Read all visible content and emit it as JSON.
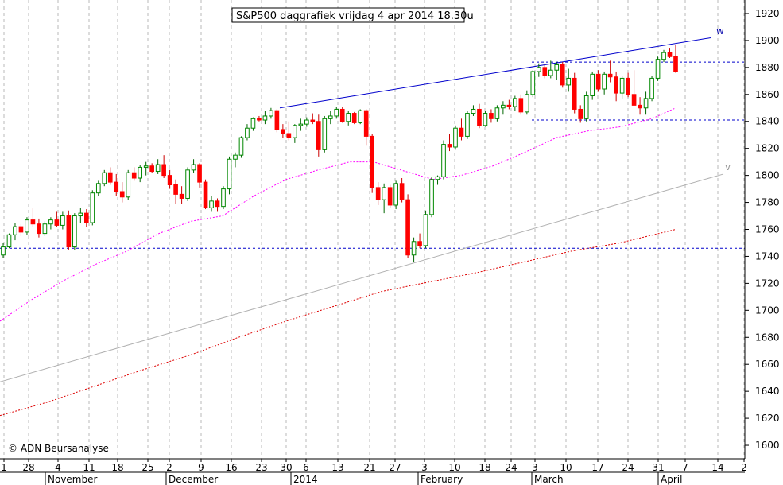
{
  "title": "S&P500 daggrafiek vrijdag 4 apr 2014 18.30u",
  "copyright": "© ADN Beursanalyse",
  "chart_data": {
    "type": "candlestick",
    "ylim": [
      1590,
      1930
    ],
    "y_ticks": [
      1600,
      1620,
      1640,
      1660,
      1680,
      1700,
      1720,
      1740,
      1760,
      1780,
      1800,
      1820,
      1840,
      1860,
      1880,
      1900,
      1920
    ],
    "x_tick_labels": [
      "1",
      "28",
      "4",
      "11",
      "18",
      "25",
      "2",
      "9",
      "16",
      "23",
      "30",
      "6",
      "13",
      "21",
      "27",
      "3",
      "10",
      "18",
      "24",
      "3",
      "10",
      "17",
      "24",
      "31",
      "7",
      "14",
      "2"
    ],
    "months": [
      "November",
      "December",
      "2014",
      "February",
      "March",
      "April"
    ],
    "up_color": "#00aa00",
    "down_color": "#ff0000",
    "line_labels": {
      "upper_trend": "w",
      "long_trend": "v"
    },
    "horizontal_levels": [
      1884,
      1841,
      1746
    ],
    "candles": [
      [
        1741,
        1750,
        1739,
        1747
      ],
      [
        1747,
        1757,
        1746,
        1756
      ],
      [
        1756,
        1765,
        1752,
        1762
      ],
      [
        1762,
        1764,
        1755,
        1758
      ],
      [
        1758,
        1769,
        1756,
        1767
      ],
      [
        1767,
        1776,
        1762,
        1764
      ],
      [
        1764,
        1768,
        1754,
        1757
      ],
      [
        1757,
        1766,
        1755,
        1764
      ],
      [
        1764,
        1769,
        1760,
        1767
      ],
      [
        1767,
        1773,
        1762,
        1763
      ],
      [
        1763,
        1773,
        1760,
        1770
      ],
      [
        1770,
        1774,
        1745,
        1747
      ],
      [
        1747,
        1772,
        1745,
        1770
      ],
      [
        1770,
        1776,
        1765,
        1772
      ],
      [
        1772,
        1775,
        1762,
        1765
      ],
      [
        1765,
        1789,
        1763,
        1787
      ],
      [
        1787,
        1796,
        1785,
        1794
      ],
      [
        1794,
        1804,
        1792,
        1802
      ],
      [
        1802,
        1806,
        1793,
        1795
      ],
      [
        1795,
        1801,
        1785,
        1788
      ],
      [
        1788,
        1795,
        1780,
        1784
      ],
      [
        1784,
        1804,
        1782,
        1802
      ],
      [
        1802,
        1806,
        1796,
        1798
      ],
      [
        1798,
        1808,
        1795,
        1806
      ],
      [
        1806,
        1810,
        1800,
        1807
      ],
      [
        1807,
        1809,
        1802,
        1803
      ],
      [
        1803,
        1812,
        1801,
        1808
      ],
      [
        1808,
        1815,
        1798,
        1800
      ],
      [
        1800,
        1804,
        1790,
        1793
      ],
      [
        1793,
        1797,
        1779,
        1786
      ],
      [
        1786,
        1792,
        1779,
        1783
      ],
      [
        1783,
        1806,
        1781,
        1804
      ],
      [
        1804,
        1812,
        1802,
        1808
      ],
      [
        1808,
        1809,
        1791,
        1795
      ],
      [
        1795,
        1797,
        1775,
        1776
      ],
      [
        1776,
        1785,
        1773,
        1781
      ],
      [
        1781,
        1783,
        1773,
        1777
      ],
      [
        1777,
        1792,
        1775,
        1790
      ],
      [
        1790,
        1814,
        1786,
        1812
      ],
      [
        1812,
        1817,
        1806,
        1815
      ],
      [
        1815,
        1829,
        1813,
        1828
      ],
      [
        1828,
        1838,
        1826,
        1835
      ],
      [
        1835,
        1843,
        1833,
        1842
      ],
      [
        1842,
        1844,
        1840,
        1841
      ],
      [
        1841,
        1848,
        1838,
        1844
      ],
      [
        1844,
        1850,
        1842,
        1848
      ],
      [
        1848,
        1849,
        1832,
        1834
      ],
      [
        1834,
        1838,
        1828,
        1831
      ],
      [
        1831,
        1840,
        1826,
        1828
      ],
      [
        1828,
        1838,
        1824,
        1837
      ],
      [
        1837,
        1842,
        1833,
        1838
      ],
      [
        1838,
        1843,
        1836,
        1841
      ],
      [
        1841,
        1846,
        1838,
        1840
      ],
      [
        1840,
        1845,
        1814,
        1819
      ],
      [
        1819,
        1844,
        1817,
        1842
      ],
      [
        1842,
        1848,
        1838,
        1844
      ],
      [
        1844,
        1851,
        1842,
        1849
      ],
      [
        1849,
        1851,
        1839,
        1840
      ],
      [
        1840,
        1848,
        1837,
        1846
      ],
      [
        1846,
        1847,
        1838,
        1839
      ],
      [
        1839,
        1849,
        1838,
        1848
      ],
      [
        1848,
        1849,
        1822,
        1829
      ],
      [
        1829,
        1831,
        1787,
        1791
      ],
      [
        1791,
        1795,
        1778,
        1782
      ],
      [
        1782,
        1794,
        1772,
        1791
      ],
      [
        1791,
        1793,
        1776,
        1778
      ],
      [
        1778,
        1796,
        1775,
        1794
      ],
      [
        1794,
        1798,
        1780,
        1782
      ],
      [
        1782,
        1786,
        1739,
        1741
      ],
      [
        1741,
        1754,
        1736,
        1751
      ],
      [
        1751,
        1757,
        1746,
        1748
      ],
      [
        1748,
        1774,
        1746,
        1771
      ],
      [
        1771,
        1799,
        1769,
        1797
      ],
      [
        1797,
        1800,
        1793,
        1799
      ],
      [
        1799,
        1826,
        1797,
        1823
      ],
      [
        1823,
        1831,
        1818,
        1821
      ],
      [
        1821,
        1837,
        1819,
        1835
      ],
      [
        1835,
        1842,
        1826,
        1829
      ],
      [
        1829,
        1848,
        1827,
        1846
      ],
      [
        1846,
        1852,
        1844,
        1849
      ],
      [
        1849,
        1853,
        1835,
        1837
      ],
      [
        1837,
        1848,
        1836,
        1846
      ],
      [
        1846,
        1849,
        1839,
        1842
      ],
      [
        1842,
        1852,
        1840,
        1850
      ],
      [
        1850,
        1855,
        1845,
        1852
      ],
      [
        1852,
        1856,
        1849,
        1851
      ],
      [
        1851,
        1859,
        1848,
        1857
      ],
      [
        1857,
        1860,
        1845,
        1847
      ],
      [
        1847,
        1863,
        1845,
        1860
      ],
      [
        1860,
        1878,
        1858,
        1877
      ],
      [
        1877,
        1883,
        1873,
        1880
      ],
      [
        1880,
        1882,
        1872,
        1874
      ],
      [
        1874,
        1885,
        1872,
        1878
      ],
      [
        1878,
        1884,
        1871,
        1882
      ],
      [
        1882,
        1884,
        1865,
        1867
      ],
      [
        1867,
        1879,
        1862,
        1872
      ],
      [
        1872,
        1876,
        1846,
        1849
      ],
      [
        1849,
        1852,
        1839,
        1842
      ],
      [
        1842,
        1862,
        1840,
        1859
      ],
      [
        1859,
        1877,
        1856,
        1875
      ],
      [
        1875,
        1878,
        1862,
        1864
      ],
      [
        1864,
        1877,
        1860,
        1875
      ],
      [
        1875,
        1885,
        1869,
        1873
      ],
      [
        1873,
        1877,
        1855,
        1861
      ],
      [
        1861,
        1874,
        1857,
        1872
      ],
      [
        1872,
        1876,
        1858,
        1860
      ],
      [
        1860,
        1878,
        1855,
        1852
      ],
      [
        1852,
        1858,
        1845,
        1850
      ],
      [
        1850,
        1862,
        1845,
        1857
      ],
      [
        1857,
        1874,
        1855,
        1872
      ],
      [
        1872,
        1888,
        1870,
        1886
      ],
      [
        1886,
        1893,
        1884,
        1891
      ],
      [
        1891,
        1894,
        1887,
        1888
      ],
      [
        1888,
        1897,
        1876,
        1877
      ]
    ]
  }
}
